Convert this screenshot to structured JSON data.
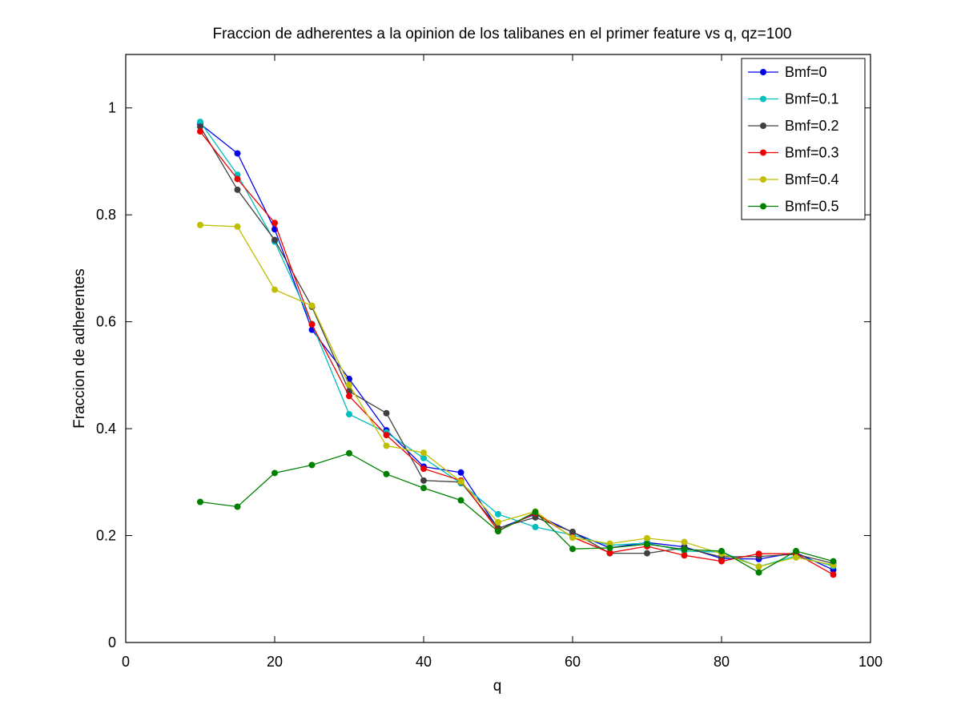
{
  "chart_data": {
    "type": "line",
    "title": "Fraccion de adherentes a la opinion de los talibanes en el primer feature vs q, qz=100",
    "xlabel": "q",
    "ylabel": "Fraccion de adherentes",
    "xlim": [
      0,
      100
    ],
    "ylim": [
      0,
      1.1
    ],
    "xticks": [
      0,
      20,
      40,
      60,
      80,
      100
    ],
    "xtick_labels": [
      "0",
      "20",
      "40",
      "60",
      "80",
      "100"
    ],
    "yticks": [
      0,
      0.2,
      0.4,
      0.6,
      0.8,
      1
    ],
    "ytick_labels": [
      "0",
      "0.2",
      "0.4",
      "0.6",
      "0.8",
      "1"
    ],
    "grid": false,
    "legend_position": "top-right",
    "x": [
      10,
      15,
      20,
      25,
      30,
      35,
      40,
      45,
      50,
      55,
      60,
      65,
      70,
      75,
      80,
      85,
      90,
      95
    ],
    "series": [
      {
        "name": "Bmf=0",
        "color": "#0000ee",
        "values": [
          0.97,
          0.915,
          0.773,
          0.585,
          0.493,
          0.397,
          0.329,
          0.318,
          0.213,
          0.24,
          0.206,
          0.177,
          0.187,
          0.179,
          0.157,
          0.156,
          0.168,
          0.136
        ]
      },
      {
        "name": "Bmf=0.1",
        "color": "#00bfbf",
        "values": [
          0.974,
          0.875,
          0.75,
          0.596,
          0.427,
          0.393,
          0.345,
          0.298,
          0.24,
          0.216,
          0.201,
          0.182,
          0.186,
          0.171,
          0.169,
          0.142,
          0.162,
          0.143
        ]
      },
      {
        "name": "Bmf=0.2",
        "color": "#404040",
        "values": [
          0.965,
          0.847,
          0.753,
          0.628,
          0.47,
          0.429,
          0.303,
          0.3,
          0.214,
          0.234,
          0.207,
          0.167,
          0.167,
          0.177,
          0.16,
          0.161,
          0.165,
          0.148
        ]
      },
      {
        "name": "Bmf=0.3",
        "color": "#ee0000",
        "values": [
          0.956,
          0.867,
          0.785,
          0.595,
          0.461,
          0.388,
          0.325,
          0.303,
          0.209,
          0.242,
          0.197,
          0.168,
          0.18,
          0.163,
          0.152,
          0.166,
          0.166,
          0.127
        ]
      },
      {
        "name": "Bmf=0.4",
        "color": "#bfbf00",
        "values": [
          0.781,
          0.778,
          0.66,
          0.63,
          0.482,
          0.368,
          0.355,
          0.301,
          0.225,
          0.245,
          0.196,
          0.185,
          0.195,
          0.188,
          0.166,
          0.142,
          0.159,
          0.145
        ]
      },
      {
        "name": "Bmf=0.5",
        "color": "#008000",
        "values": [
          0.263,
          0.254,
          0.317,
          0.332,
          0.354,
          0.315,
          0.289,
          0.266,
          0.208,
          0.244,
          0.175,
          0.177,
          0.184,
          0.174,
          0.171,
          0.131,
          0.171,
          0.152
        ]
      }
    ]
  }
}
